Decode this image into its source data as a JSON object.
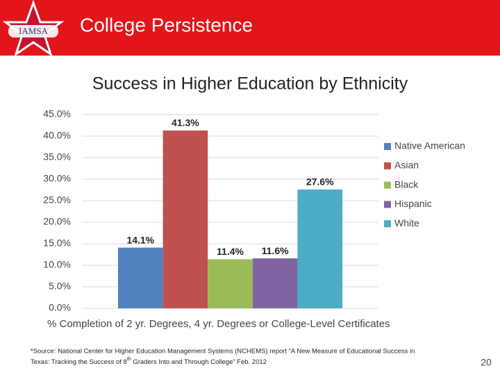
{
  "header": {
    "title": "College Persistence",
    "logo_text": "IAMSA"
  },
  "chart_data": {
    "type": "bar",
    "title": "Success in Higher Education by Ethnicity",
    "x_label": "% Completion of 2 yr. Degrees, 4 yr. Degrees or College-Level Certificates",
    "categories": [
      null
    ],
    "series": [
      {
        "name": "Native American",
        "color": "#4f81bd",
        "values": [
          14.1
        ],
        "value_labels": [
          "14.1%"
        ]
      },
      {
        "name": "Asian",
        "color": "#c0504d",
        "values": [
          41.3
        ],
        "value_labels": [
          "41.3%"
        ]
      },
      {
        "name": "Black",
        "color": "#9bbb59",
        "values": [
          11.4
        ],
        "value_labels": [
          "11.4%"
        ]
      },
      {
        "name": "Hispanic",
        "color": "#8064a2",
        "values": [
          11.6
        ],
        "value_labels": [
          "11.6%"
        ]
      },
      {
        "name": "White",
        "color": "#4bacc6",
        "values": [
          27.6
        ],
        "value_labels": [
          "27.6%"
        ]
      }
    ],
    "ylim": [
      0,
      45
    ],
    "yticks": [
      {
        "value": 0,
        "label": "0.0%"
      },
      {
        "value": 5,
        "label": "5.0%"
      },
      {
        "value": 10,
        "label": "10.0%"
      },
      {
        "value": 15,
        "label": "15.0%"
      },
      {
        "value": 20,
        "label": "20.0%"
      },
      {
        "value": 25,
        "label": "25.0%"
      },
      {
        "value": 30,
        "label": "30.0%"
      },
      {
        "value": 35,
        "label": "35.0%"
      },
      {
        "value": 40,
        "label": "40.0%"
      },
      {
        "value": 45,
        "label": "45.0%"
      }
    ],
    "grid": true,
    "legend": "right"
  },
  "footnote": {
    "line1": "*Source: National Center for Higher Education Management Systems (NCHEMS) report “A New Measure of Educational Success in",
    "line2_before": "Texas: Tracking the Success of 8",
    "line2_superscript": "th",
    "line2_after": " Graders Into and Through College”  Feb. 2012"
  },
  "page_number": "20"
}
